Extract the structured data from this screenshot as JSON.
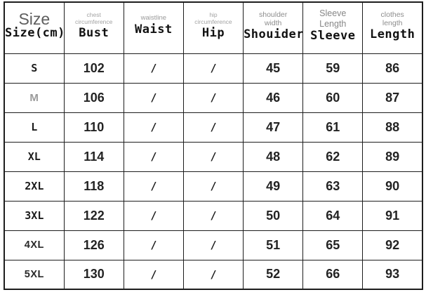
{
  "chart_data": {
    "type": "table",
    "title": "Size(cm)",
    "unit": "cm",
    "columns": [
      "Size(cm)",
      "Bust",
      "Waist",
      "Hip",
      "Shouider",
      "Sleeve",
      "Length"
    ],
    "rows": [
      [
        "S",
        "102",
        "/",
        "/",
        "45",
        "59",
        "86"
      ],
      [
        "M",
        "106",
        "/",
        "/",
        "46",
        "60",
        "87"
      ],
      [
        "L",
        "110",
        "/",
        "/",
        "47",
        "61",
        "88"
      ],
      [
        "XL",
        "114",
        "/",
        "/",
        "48",
        "62",
        "89"
      ],
      [
        "2XL",
        "118",
        "/",
        "/",
        "49",
        "63",
        "90"
      ],
      [
        "3XL",
        "122",
        "/",
        "/",
        "50",
        "64",
        "91"
      ],
      [
        "4XL",
        "126",
        "/",
        "/",
        "51",
        "65",
        "92"
      ],
      [
        "5XL",
        "130",
        "/",
        "/",
        "52",
        "66",
        "93"
      ]
    ]
  },
  "table": {
    "columns": [
      {
        "sub": "Size",
        "label": "Size(cm)"
      },
      {
        "sub": "chest circumference",
        "label": "Bust"
      },
      {
        "sub": "waistline",
        "label": "Waist"
      },
      {
        "sub": "hip circumference",
        "label": "Hip"
      },
      {
        "sub": "shoulder width",
        "label": "Shouider"
      },
      {
        "sub": "Sleeve Length",
        "label": "Sleeve"
      },
      {
        "sub": "clothes length",
        "label": "Length"
      }
    ],
    "rows": [
      {
        "label": "S",
        "cells": [
          "102",
          "/",
          "/",
          "45",
          "59",
          "86"
        ]
      },
      {
        "label": "M",
        "cells": [
          "106",
          "/",
          "/",
          "46",
          "60",
          "87"
        ]
      },
      {
        "label": "L",
        "cells": [
          "110",
          "/",
          "/",
          "47",
          "61",
          "88"
        ]
      },
      {
        "label": "XL",
        "cells": [
          "114",
          "/",
          "/",
          "48",
          "62",
          "89"
        ]
      },
      {
        "label": "2XL",
        "cells": [
          "118",
          "/",
          "/",
          "49",
          "63",
          "90"
        ]
      },
      {
        "label": "3XL",
        "cells": [
          "122",
          "/",
          "/",
          "50",
          "64",
          "91"
        ]
      },
      {
        "label": "4XL",
        "cells": [
          "126",
          "/",
          "/",
          "51",
          "65",
          "92"
        ]
      },
      {
        "label": "5XL",
        "cells": [
          "130",
          "/",
          "/",
          "52",
          "66",
          "93"
        ]
      }
    ]
  },
  "colors": {
    "border": "#1d1d1d",
    "text": "#232323",
    "muted_label": "#9a9a9a",
    "background": "#ffffff"
  }
}
